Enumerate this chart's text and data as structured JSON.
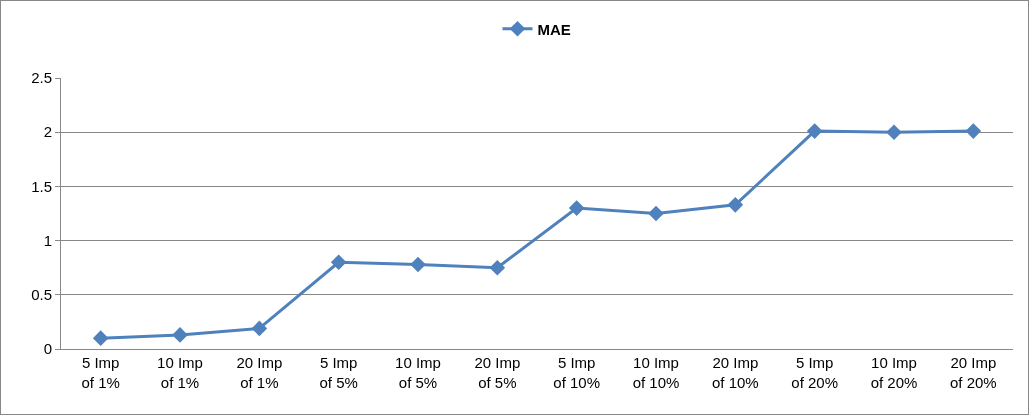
{
  "chart_data": {
    "type": "line",
    "categories": [
      "5 Imp of 1%",
      "10 Imp of 1%",
      "20 Imp of 1%",
      "5 Imp of 5%",
      "10 Imp of 5%",
      "20 Imp of 5%",
      "5 Imp of 10%",
      "10 Imp of 10%",
      "20 Imp of 10%",
      "5 Imp of 20%",
      "10 Imp of 20%",
      "20 Imp of 20%"
    ],
    "series": [
      {
        "name": "MAE",
        "color": "#4f81bd",
        "values": [
          0.1,
          0.13,
          0.19,
          0.8,
          0.78,
          0.75,
          1.3,
          1.25,
          1.33,
          2.01,
          2.0,
          2.01
        ]
      }
    ],
    "ylim": [
      0,
      2.5
    ],
    "yticks": [
      0,
      0.5,
      1,
      1.5,
      2,
      2.5
    ],
    "grid": "y",
    "legend": "top",
    "marker": "diamond",
    "line_style": "solid"
  }
}
